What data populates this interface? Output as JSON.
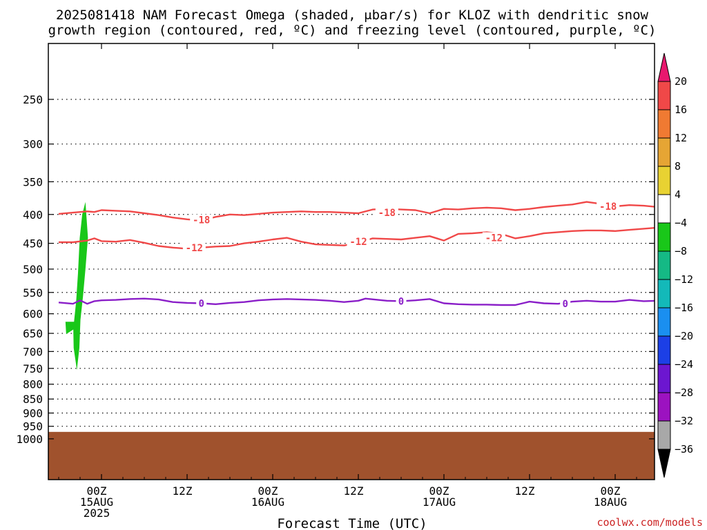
{
  "chart_data": {
    "type": "contour",
    "title": [
      "2025081418 NAM Forecast Omega (shaded, μbar/s) for KLOZ with dendritic snow",
      "growth region (contoured, red, ºC) and freezing level (contoured, purple, ºC)"
    ],
    "xlabel": "Forecast Time (UTC)",
    "credit": "coolwx.com/models",
    "x_ticks": [
      {
        "hours": 6,
        "lines": [
          "00Z",
          "15AUG",
          "2025"
        ]
      },
      {
        "hours": 18,
        "lines": [
          "12Z"
        ]
      },
      {
        "hours": 30,
        "lines": [
          "00Z",
          "16AUG"
        ]
      },
      {
        "hours": 42,
        "lines": [
          "12Z"
        ]
      },
      {
        "hours": 54,
        "lines": [
          "00Z",
          "17AUG"
        ]
      },
      {
        "hours": 66,
        "lines": [
          "12Z"
        ]
      },
      {
        "hours": 78,
        "lines": [
          "00Z",
          "18AUG"
        ]
      }
    ],
    "y_ticks": [
      250,
      300,
      350,
      400,
      450,
      500,
      550,
      600,
      650,
      700,
      750,
      800,
      850,
      900,
      950,
      1000
    ],
    "colorbar": {
      "levels": [
        20,
        16,
        12,
        8,
        4,
        -4,
        -8,
        -12,
        -16,
        -20,
        -24,
        -28,
        -32,
        -36
      ],
      "colors": [
        "#e8186e",
        "#f04848",
        "#f07a32",
        "#e6a534",
        "#e8d232",
        "#ffffff",
        "#19c719",
        "#15b985",
        "#13b9b9",
        "#1a8ff0",
        "#1c3fe6",
        "#6c16d0",
        "#9c12c0",
        "#a8a8a8",
        "#000000"
      ]
    },
    "contours": [
      {
        "label": "-18",
        "color": "#f04848",
        "label_positions": [
          [
            20,
            409
          ],
          [
            46,
            397
          ],
          [
            77,
            387
          ]
        ],
        "points": [
          [
            0,
            399
          ],
          [
            2,
            397
          ],
          [
            4,
            395
          ],
          [
            5,
            396
          ],
          [
            6,
            393
          ],
          [
            8,
            394
          ],
          [
            10,
            395
          ],
          [
            12,
            398
          ],
          [
            14,
            401
          ],
          [
            16,
            405
          ],
          [
            18,
            408
          ],
          [
            20,
            410
          ],
          [
            22,
            404
          ],
          [
            24,
            400
          ],
          [
            26,
            401
          ],
          [
            28,
            399
          ],
          [
            30,
            397
          ],
          [
            32,
            396
          ],
          [
            34,
            395
          ],
          [
            36,
            396
          ],
          [
            38,
            396
          ],
          [
            40,
            397
          ],
          [
            42,
            398
          ],
          [
            44,
            392
          ],
          [
            46,
            391
          ],
          [
            48,
            392
          ],
          [
            50,
            393
          ],
          [
            52,
            398
          ],
          [
            54,
            391
          ],
          [
            56,
            392
          ],
          [
            58,
            390
          ],
          [
            60,
            389
          ],
          [
            62,
            390
          ],
          [
            64,
            393
          ],
          [
            66,
            391
          ],
          [
            68,
            388
          ],
          [
            70,
            386
          ],
          [
            72,
            384
          ],
          [
            74,
            380
          ],
          [
            76,
            383
          ],
          [
            78,
            387
          ],
          [
            80,
            385
          ],
          [
            82,
            386
          ],
          [
            84,
            388
          ],
          [
            86,
            387
          ]
        ]
      },
      {
        "label": "-12",
        "color": "#f04848",
        "label_positions": [
          [
            19,
            458
          ],
          [
            42,
            447
          ],
          [
            61,
            440
          ]
        ],
        "points": [
          [
            0,
            448
          ],
          [
            2,
            448
          ],
          [
            4,
            445
          ],
          [
            5,
            441
          ],
          [
            6,
            446
          ],
          [
            8,
            447
          ],
          [
            10,
            444
          ],
          [
            12,
            449
          ],
          [
            14,
            455
          ],
          [
            16,
            458
          ],
          [
            18,
            460
          ],
          [
            20,
            458
          ],
          [
            22,
            456
          ],
          [
            24,
            455
          ],
          [
            26,
            450
          ],
          [
            28,
            447
          ],
          [
            30,
            443
          ],
          [
            32,
            440
          ],
          [
            34,
            447
          ],
          [
            36,
            452
          ],
          [
            38,
            453
          ],
          [
            40,
            454
          ],
          [
            42,
            449
          ],
          [
            44,
            441
          ],
          [
            46,
            442
          ],
          [
            48,
            443
          ],
          [
            50,
            440
          ],
          [
            52,
            437
          ],
          [
            54,
            445
          ],
          [
            56,
            433
          ],
          [
            58,
            432
          ],
          [
            60,
            430
          ],
          [
            62,
            433
          ],
          [
            64,
            441
          ],
          [
            66,
            437
          ],
          [
            68,
            432
          ],
          [
            70,
            430
          ],
          [
            72,
            428
          ],
          [
            74,
            427
          ],
          [
            76,
            427
          ],
          [
            78,
            428
          ],
          [
            80,
            426
          ],
          [
            82,
            424
          ],
          [
            84,
            422
          ],
          [
            86,
            420
          ]
        ]
      },
      {
        "label": "0",
        "color": "#8a1ec8",
        "label_positions": [
          [
            20,
            575
          ],
          [
            48,
            570
          ],
          [
            71,
            576
          ]
        ],
        "points": [
          [
            0,
            573
          ],
          [
            2,
            576
          ],
          [
            3,
            568
          ],
          [
            4,
            576
          ],
          [
            5,
            570
          ],
          [
            6,
            568
          ],
          [
            8,
            567
          ],
          [
            10,
            565
          ],
          [
            12,
            564
          ],
          [
            14,
            566
          ],
          [
            16,
            572
          ],
          [
            18,
            574
          ],
          [
            20,
            575
          ],
          [
            22,
            577
          ],
          [
            24,
            574
          ],
          [
            26,
            572
          ],
          [
            28,
            568
          ],
          [
            30,
            566
          ],
          [
            32,
            565
          ],
          [
            34,
            566
          ],
          [
            36,
            567
          ],
          [
            38,
            569
          ],
          [
            40,
            572
          ],
          [
            42,
            569
          ],
          [
            43,
            564
          ],
          [
            46,
            569
          ],
          [
            48,
            570
          ],
          [
            50,
            568
          ],
          [
            52,
            565
          ],
          [
            54,
            575
          ],
          [
            56,
            577
          ],
          [
            58,
            578
          ],
          [
            60,
            578
          ],
          [
            62,
            579
          ],
          [
            64,
            579
          ],
          [
            66,
            571
          ],
          [
            68,
            575
          ],
          [
            70,
            576
          ],
          [
            72,
            571
          ],
          [
            74,
            569
          ],
          [
            76,
            571
          ],
          [
            78,
            571
          ],
          [
            80,
            567
          ],
          [
            82,
            570
          ],
          [
            84,
            569
          ],
          [
            86,
            571
          ]
        ]
      }
    ],
    "omega_shaded": [
      {
        "level": "-8 to -4",
        "color": "#19c719",
        "points": [
          [
            3.75,
            380
          ],
          [
            4.1,
            440
          ],
          [
            3.75,
            500
          ],
          [
            3.4,
            560
          ],
          [
            3.05,
            615
          ],
          [
            2.9,
            690
          ],
          [
            2.55,
            755
          ],
          [
            2.1,
            690
          ],
          [
            2.05,
            640
          ],
          [
            1.05,
            652
          ],
          [
            0.95,
            620
          ],
          [
            2.15,
            620
          ],
          [
            2.45,
            570
          ],
          [
            2.7,
            510
          ],
          [
            2.95,
            440
          ],
          [
            3.3,
            400
          ]
        ]
      }
    ],
    "terrain": {
      "color": "#a0522d",
      "top_hpa": 972
    }
  }
}
